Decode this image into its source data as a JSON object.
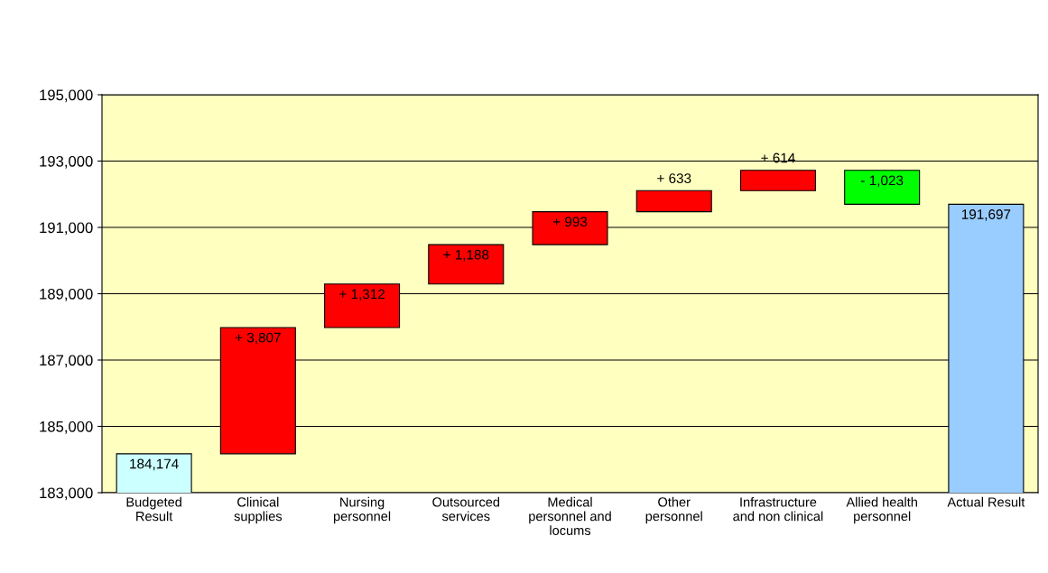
{
  "chart_data": {
    "type": "bar",
    "categories": [
      "Budgeted\nResult",
      "Clinical\nsupplies",
      "Nursing\npersonnel",
      "Outsourced\nservices",
      "Medical\npersonnel and\nlocums",
      "Other\npersonnel",
      "Infrastructure\nand non clinical",
      "Allied health\npersonnel",
      "Actual Result"
    ],
    "values": [
      184174,
      3807,
      1312,
      1188,
      993,
      633,
      614,
      -1023,
      191697
    ],
    "base": [
      0,
      184174,
      187981,
      189293,
      190481,
      191474,
      192107,
      192721,
      0
    ],
    "colors": [
      "#ccffff",
      "#ff0000",
      "#ff0000",
      "#ff0000",
      "#ff0000",
      "#ff0000",
      "#ff0000",
      "#00ff00",
      "#99ccff"
    ],
    "value_labels": [
      "184,174",
      "+ 3,807",
      "+ 1,312",
      "+ 1,188",
      "+ 993",
      "+ 633",
      "+ 614",
      "- 1,023",
      "191,697"
    ],
    "ylim": [
      183000,
      195000
    ],
    "yticks": [
      {
        "value": 183000,
        "label": "183,000"
      },
      {
        "value": 185000,
        "label": "185,000"
      },
      {
        "value": 187000,
        "label": "187,000"
      },
      {
        "value": 189000,
        "label": "189,000"
      },
      {
        "value": 191000,
        "label": "191,000"
      },
      {
        "value": 193000,
        "label": "193,000"
      },
      {
        "value": 195000,
        "label": "195,000"
      }
    ],
    "grid": "y"
  }
}
